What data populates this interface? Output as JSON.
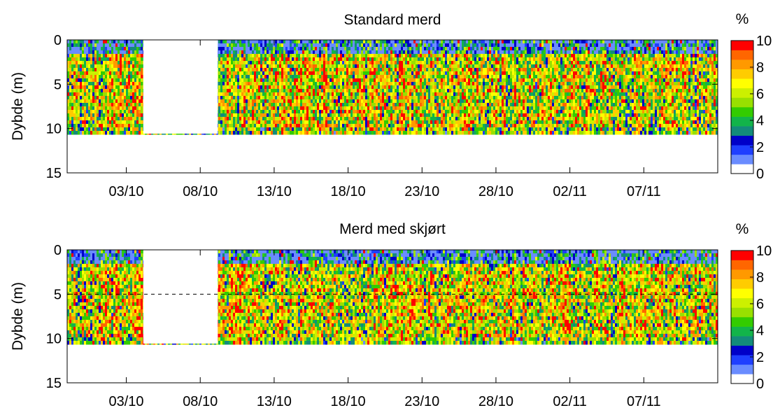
{
  "chart_data": [
    {
      "type": "heatmap",
      "title": "Standard merd",
      "ylabel": "Dybde (m)",
      "xlabel": "",
      "x_tick_labels": [
        "03/10",
        "08/10",
        "13/10",
        "18/10",
        "23/10",
        "28/10",
        "02/11",
        "07/11"
      ],
      "x_range": [
        "29/09",
        "12/11"
      ],
      "ylim": [
        15,
        0
      ],
      "y_ticks": [
        0,
        5,
        10,
        15
      ],
      "data_depth_range": [
        0,
        10.5
      ],
      "gap_dates": [
        "05/10",
        "09/10"
      ],
      "value_unit": "%",
      "colorbar": {
        "label": "%",
        "ticks": [
          0,
          2,
          4,
          6,
          8,
          10
        ],
        "colors": [
          "#ffffff",
          "#6a8cff",
          "#1f3fff",
          "#0000c8",
          "#138b7a",
          "#12b44a",
          "#33cc00",
          "#99e000",
          "#ccf000",
          "#ffff00",
          "#ffcc00",
          "#ff9900",
          "#ff6600",
          "#ff0000"
        ]
      },
      "grid": false
    },
    {
      "type": "heatmap",
      "title": "Merd med skjørt",
      "ylabel": "Dybde (m)",
      "xlabel": "",
      "x_tick_labels": [
        "03/10",
        "08/10",
        "13/10",
        "18/10",
        "23/10",
        "28/10",
        "02/11",
        "07/11"
      ],
      "x_range": [
        "29/09",
        "12/11"
      ],
      "ylim": [
        15,
        0
      ],
      "y_ticks": [
        0,
        5,
        10,
        15
      ],
      "data_depth_range": [
        0,
        10.5
      ],
      "gap_dates": [
        "05/10",
        "09/10"
      ],
      "reference_line_depth": 5,
      "value_unit": "%",
      "colorbar": {
        "label": "%",
        "ticks": [
          0,
          2,
          4,
          6,
          8,
          10
        ],
        "colors": [
          "#ffffff",
          "#6a8cff",
          "#1f3fff",
          "#0000c8",
          "#138b7a",
          "#12b44a",
          "#33cc00",
          "#99e000",
          "#ccf000",
          "#ffff00",
          "#ffcc00",
          "#ff9900",
          "#ff6600",
          "#ff0000"
        ]
      },
      "grid": false
    }
  ]
}
